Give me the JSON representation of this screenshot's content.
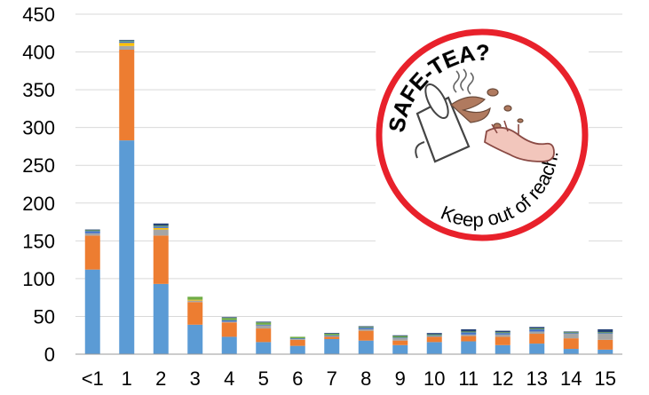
{
  "chart_data": {
    "type": "bar",
    "stacked": true,
    "categories": [
      "<1",
      "1",
      "2",
      "3",
      "4",
      "5",
      "6",
      "7",
      "8",
      "9",
      "10",
      "11",
      "12",
      "13",
      "14",
      "15"
    ],
    "ylim": [
      0,
      450
    ],
    "yticks": [
      0,
      50,
      100,
      150,
      200,
      250,
      300,
      350,
      400,
      450
    ],
    "grid": "horizontal",
    "legend": "none",
    "series": [
      {
        "color": "#5b9bd5",
        "values": [
          112,
          283,
          93,
          39,
          23,
          16,
          11,
          20,
          18,
          12,
          16,
          17,
          12,
          14,
          7,
          6
        ]
      },
      {
        "color": "#ed7d31",
        "values": [
          45,
          120,
          64,
          30,
          19,
          18,
          8,
          3,
          13,
          6,
          7,
          7,
          11,
          13,
          14,
          13
        ]
      },
      {
        "color": "#a5a5a5",
        "values": [
          3,
          5,
          8,
          2,
          1,
          4,
          1,
          1,
          2,
          3,
          1,
          2,
          3,
          3,
          6,
          8
        ]
      },
      {
        "color": "#ffc000",
        "values": [
          0,
          4,
          2,
          1,
          0,
          0,
          0,
          0,
          0,
          0,
          0,
          0,
          0,
          0,
          0,
          0
        ]
      },
      {
        "color": "#4472c4",
        "values": [
          3,
          2,
          2,
          0,
          2,
          1,
          1,
          1,
          2,
          1,
          1,
          3,
          2,
          3,
          1,
          1
        ]
      },
      {
        "color": "#70ad47",
        "values": [
          1,
          1,
          1,
          4,
          3,
          3,
          2,
          2,
          1,
          2,
          1,
          1,
          1,
          1,
          1,
          1
        ]
      },
      {
        "color": "#264478",
        "values": [
          1,
          1,
          3,
          0,
          1,
          1,
          0,
          1,
          1,
          1,
          2,
          3,
          2,
          2,
          1,
          4
        ]
      }
    ]
  },
  "logo": {
    "top_text": "SAFE-TEA?",
    "bottom_text": "Keep out of reach!"
  }
}
